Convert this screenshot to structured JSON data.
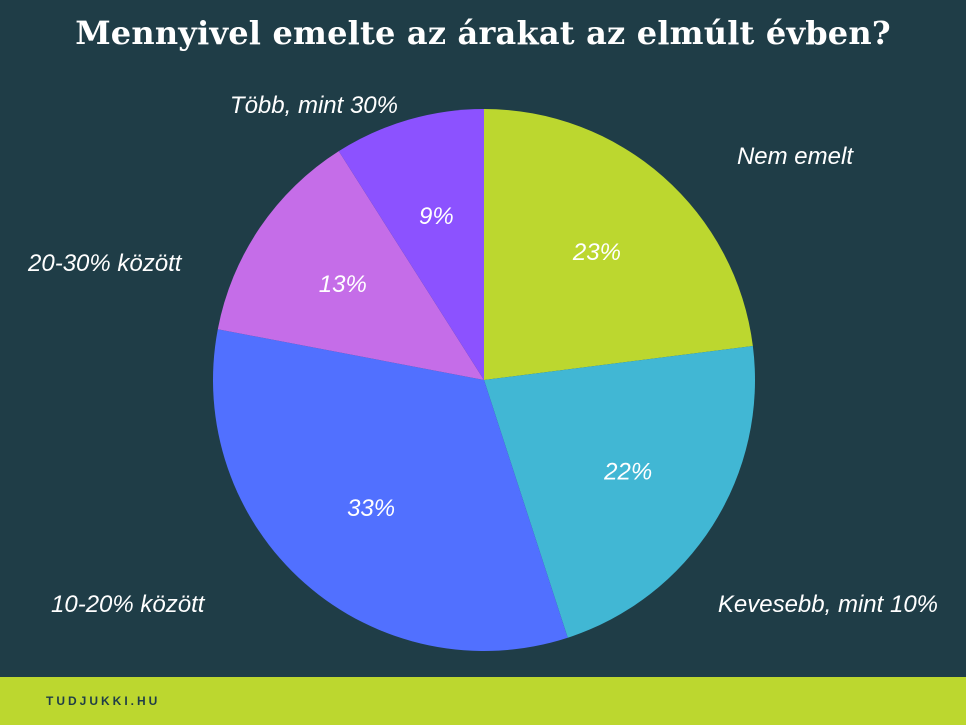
{
  "footer": {
    "brand": "TUDJUKKI.HU"
  },
  "colors": {
    "background": "#1f3d47",
    "footer": "#bcd72f",
    "text": "#ffffff"
  },
  "chart_data": {
    "type": "pie",
    "title": "Mennyivel emelte az árakat az elmúlt évben?",
    "start_angle_deg": 0,
    "direction": "clockwise",
    "slices": [
      {
        "label": "Nem emelt",
        "value": 23,
        "value_label": "23%",
        "color": "#bcd72f"
      },
      {
        "label": "Kevesebb, mint 10%",
        "value": 22,
        "value_label": "22%",
        "color": "#41b7d4"
      },
      {
        "label": "10-20% között",
        "value": 33,
        "value_label": "33%",
        "color": "#5170ff"
      },
      {
        "label": "20-30% között",
        "value": 13,
        "value_label": "13%",
        "color": "#c56de8"
      },
      {
        "label": "Több, mint 30%",
        "value": 9,
        "value_label": "9%",
        "color": "#8c52ff"
      }
    ]
  }
}
